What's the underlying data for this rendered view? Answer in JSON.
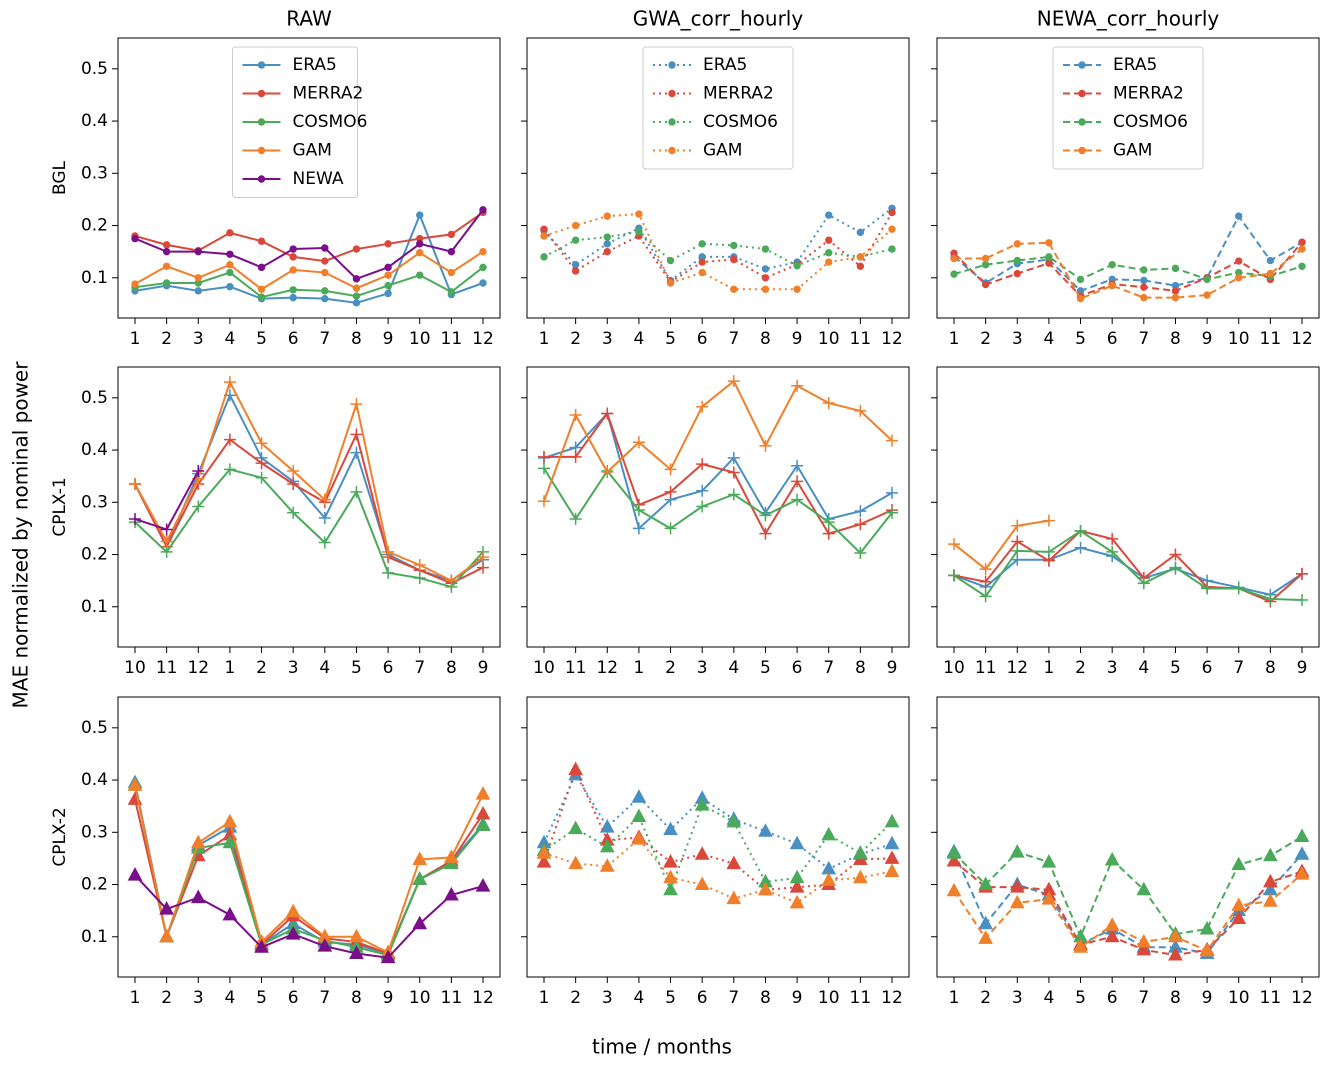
{
  "ylabel": "MAE normalized by nominal power",
  "xlabel": "time / months",
  "chart_data": [
    {
      "type": "line",
      "title": "RAW",
      "ylabel": "BGL",
      "linestyle": "solid",
      "marker": "o",
      "legend": "upper center",
      "categories": [
        "1",
        "2",
        "3",
        "4",
        "5",
        "6",
        "7",
        "8",
        "9",
        "10",
        "11",
        "12"
      ],
      "ylim": [
        0.023,
        0.559
      ],
      "yticks": [
        0.1,
        0.2,
        0.3,
        0.4,
        0.5
      ],
      "series": [
        {
          "name": "ERA5",
          "color": "#4a8fc2",
          "values": [
            0.075,
            0.085,
            0.075,
            0.083,
            0.06,
            0.062,
            0.06,
            0.052,
            0.07,
            0.22,
            0.068,
            0.09
          ]
        },
        {
          "name": "MERRA2",
          "color": "#d9483b",
          "values": [
            0.18,
            0.163,
            0.152,
            0.186,
            0.17,
            0.14,
            0.132,
            0.155,
            0.165,
            0.175,
            0.183,
            0.225
          ]
        },
        {
          "name": "COSMO6",
          "color": "#4aaa5a",
          "values": [
            0.082,
            0.09,
            0.09,
            0.11,
            0.063,
            0.077,
            0.075,
            0.065,
            0.085,
            0.105,
            0.073,
            0.12
          ]
        },
        {
          "name": "GAM",
          "color": "#f07f2a",
          "values": [
            0.088,
            0.122,
            0.1,
            0.125,
            0.078,
            0.115,
            0.11,
            0.08,
            0.105,
            0.148,
            0.11,
            0.15
          ]
        },
        {
          "name": "NEWA",
          "color": "#7a0f8a",
          "values": [
            0.175,
            0.15,
            0.15,
            0.145,
            0.12,
            0.155,
            0.157,
            0.098,
            0.12,
            0.165,
            0.15,
            0.23
          ]
        }
      ]
    },
    {
      "type": "line",
      "title": "GWA_corr_hourly",
      "linestyle": "dotted",
      "marker": "o",
      "legend": "upper center",
      "categories": [
        "1",
        "2",
        "3",
        "4",
        "5",
        "6",
        "7",
        "8",
        "9",
        "10",
        "11",
        "12"
      ],
      "ylim": [
        0.023,
        0.559
      ],
      "yticks": [
        0.1,
        0.2,
        0.3,
        0.4,
        0.5
      ],
      "series": [
        {
          "name": "ERA5",
          "color": "#4a8fc2",
          "values": [
            0.19,
            0.125,
            0.165,
            0.195,
            0.095,
            0.14,
            0.14,
            0.117,
            0.13,
            0.22,
            0.187,
            0.233
          ]
        },
        {
          "name": "MERRA2",
          "color": "#d9483b",
          "values": [
            0.193,
            0.113,
            0.15,
            0.18,
            0.092,
            0.13,
            0.135,
            0.1,
            0.125,
            0.172,
            0.122,
            0.225
          ]
        },
        {
          "name": "COSMO6",
          "color": "#4aaa5a",
          "values": [
            0.14,
            0.172,
            0.178,
            0.188,
            0.133,
            0.165,
            0.162,
            0.155,
            0.123,
            0.148,
            0.14,
            0.155
          ]
        },
        {
          "name": "GAM",
          "color": "#f07f2a",
          "values": [
            0.18,
            0.2,
            0.218,
            0.222,
            0.09,
            0.11,
            0.078,
            0.078,
            0.078,
            0.13,
            0.14,
            0.193
          ]
        }
      ]
    },
    {
      "type": "line",
      "title": "NEWA_corr_hourly",
      "linestyle": "dashed",
      "marker": "o",
      "legend": "upper center",
      "categories": [
        "1",
        "2",
        "3",
        "4",
        "5",
        "6",
        "7",
        "8",
        "9",
        "10",
        "11",
        "12"
      ],
      "ylim": [
        0.023,
        0.559
      ],
      "yticks": [
        0.1,
        0.2,
        0.3,
        0.4,
        0.5
      ],
      "series": [
        {
          "name": "ERA5",
          "color": "#4a8fc2",
          "values": [
            0.14,
            0.09,
            0.127,
            0.135,
            0.075,
            0.097,
            0.095,
            0.085,
            0.1,
            0.218,
            0.133,
            0.168
          ]
        },
        {
          "name": "MERRA2",
          "color": "#d9483b",
          "values": [
            0.147,
            0.087,
            0.108,
            0.128,
            0.065,
            0.088,
            0.082,
            0.075,
            0.1,
            0.132,
            0.097,
            0.168
          ]
        },
        {
          "name": "COSMO6",
          "color": "#4aaa5a",
          "values": [
            0.107,
            0.125,
            0.133,
            0.14,
            0.097,
            0.125,
            0.115,
            0.118,
            0.097,
            0.11,
            0.103,
            0.122
          ]
        },
        {
          "name": "GAM",
          "color": "#f07f2a",
          "values": [
            0.137,
            0.137,
            0.165,
            0.167,
            0.06,
            0.085,
            0.062,
            0.062,
            0.067,
            0.1,
            0.108,
            0.155
          ]
        }
      ]
    },
    {
      "type": "line",
      "ylabel": "CPLX-1",
      "linestyle": "solid",
      "marker": "+",
      "categories": [
        "10",
        "11",
        "12",
        "1",
        "2",
        "3",
        "4",
        "5",
        "6",
        "7",
        "8",
        "9"
      ],
      "ylim": [
        0.023,
        0.559
      ],
      "yticks": [
        0.1,
        0.2,
        0.3,
        0.4,
        0.5
      ],
      "series": [
        {
          "color": "#4a8fc2",
          "values": [
            0.335,
            0.215,
            0.355,
            0.505,
            0.385,
            0.34,
            0.27,
            0.395,
            0.2,
            0.17,
            0.15,
            0.19
          ]
        },
        {
          "color": "#d9483b",
          "values": [
            0.335,
            0.215,
            0.335,
            0.42,
            0.375,
            0.335,
            0.3,
            0.43,
            0.195,
            0.17,
            0.145,
            0.175
          ]
        },
        {
          "color": "#4aaa5a",
          "values": [
            0.262,
            0.205,
            0.292,
            0.363,
            0.347,
            0.28,
            0.223,
            0.32,
            0.165,
            0.155,
            0.138,
            0.205
          ]
        },
        {
          "color": "#f07f2a",
          "values": [
            0.335,
            0.225,
            0.345,
            0.53,
            0.413,
            0.36,
            0.305,
            0.488,
            0.205,
            0.18,
            0.15,
            0.195
          ]
        },
        {
          "color": "#7a0f8a",
          "values": [
            0.268,
            0.248,
            0.36,
            null,
            null,
            null,
            null,
            null,
            null,
            null,
            null,
            null
          ]
        }
      ]
    },
    {
      "type": "line",
      "linestyle": "solid",
      "marker": "+",
      "categories": [
        "10",
        "11",
        "12",
        "1",
        "2",
        "3",
        "4",
        "5",
        "6",
        "7",
        "8",
        "9"
      ],
      "ylim": [
        0.023,
        0.559
      ],
      "yticks": [
        0.1,
        0.2,
        0.3,
        0.4,
        0.5
      ],
      "series": [
        {
          "color": "#4a8fc2",
          "values": [
            0.385,
            0.405,
            0.47,
            0.25,
            0.305,
            0.322,
            0.385,
            0.28,
            0.37,
            0.268,
            0.283,
            0.318
          ]
        },
        {
          "color": "#d9483b",
          "values": [
            0.387,
            0.387,
            0.47,
            0.295,
            0.32,
            0.373,
            0.357,
            0.24,
            0.34,
            0.24,
            0.258,
            0.285
          ]
        },
        {
          "color": "#4aaa5a",
          "values": [
            0.365,
            0.268,
            0.36,
            0.285,
            0.25,
            0.292,
            0.315,
            0.275,
            0.305,
            0.262,
            0.203,
            0.28
          ]
        },
        {
          "color": "#f07f2a",
          "values": [
            0.302,
            0.467,
            0.358,
            0.415,
            0.363,
            0.483,
            0.532,
            0.408,
            0.523,
            0.49,
            0.475,
            0.418
          ]
        }
      ]
    },
    {
      "type": "line",
      "linestyle": "solid",
      "marker": "+",
      "categories": [
        "10",
        "11",
        "12",
        "1",
        "2",
        "3",
        "4",
        "5",
        "6",
        "7",
        "8",
        "9"
      ],
      "ylim": [
        0.023,
        0.559
      ],
      "yticks": [
        0.1,
        0.2,
        0.3,
        0.4,
        0.5
      ],
      "series": [
        {
          "color": "#4a8fc2",
          "values": [
            0.16,
            0.138,
            0.19,
            0.19,
            0.213,
            0.197,
            0.155,
            0.173,
            0.15,
            0.137,
            0.123,
            0.163
          ]
        },
        {
          "color": "#d9483b",
          "values": [
            0.16,
            0.148,
            0.225,
            0.188,
            0.245,
            0.23,
            0.155,
            0.2,
            0.138,
            0.135,
            0.11,
            0.163
          ]
        },
        {
          "color": "#4aaa5a",
          "values": [
            0.16,
            0.12,
            0.207,
            0.205,
            0.245,
            0.205,
            0.145,
            0.175,
            0.135,
            0.135,
            0.115,
            0.113
          ]
        },
        {
          "color": "#f07f2a",
          "values": [
            0.22,
            0.172,
            0.255,
            0.265,
            null,
            null,
            null,
            null,
            null,
            null,
            null,
            null
          ]
        }
      ]
    },
    {
      "type": "line",
      "ylabel": "CPLX-2",
      "linestyle": "solid",
      "marker": "^",
      "categories": [
        "1",
        "2",
        "3",
        "4",
        "5",
        "6",
        "7",
        "8",
        "9",
        "10",
        "11",
        "12"
      ],
      "ylim": [
        0.023,
        0.559
      ],
      "yticks": [
        0.1,
        0.2,
        0.3,
        0.4,
        0.5
      ],
      "series": [
        {
          "color": "#4a8fc2",
          "values": [
            0.395,
            0.1,
            0.275,
            0.31,
            0.085,
            0.125,
            0.09,
            0.085,
            0.068,
            0.21,
            0.245,
            0.315
          ]
        },
        {
          "color": "#d9483b",
          "values": [
            0.363,
            0.1,
            0.255,
            0.295,
            0.085,
            0.14,
            0.097,
            0.09,
            0.068,
            0.21,
            0.245,
            0.335
          ]
        },
        {
          "color": "#4aaa5a",
          "values": [
            0.39,
            0.1,
            0.27,
            0.28,
            0.085,
            0.115,
            0.093,
            0.08,
            0.065,
            0.21,
            0.24,
            0.313
          ]
        },
        {
          "color": "#f07f2a",
          "values": [
            0.39,
            0.1,
            0.28,
            0.32,
            0.09,
            0.148,
            0.1,
            0.1,
            0.07,
            0.248,
            0.252,
            0.373
          ]
        },
        {
          "color": "#7a0f8a",
          "values": [
            0.218,
            0.153,
            0.175,
            0.142,
            0.08,
            0.105,
            0.082,
            0.068,
            0.06,
            0.125,
            0.18,
            0.197
          ]
        }
      ]
    },
    {
      "type": "line",
      "linestyle": "dotted",
      "marker": "^",
      "categories": [
        "1",
        "2",
        "3",
        "4",
        "5",
        "6",
        "7",
        "8",
        "9",
        "10",
        "11",
        "12"
      ],
      "ylim": [
        0.023,
        0.559
      ],
      "yticks": [
        0.1,
        0.2,
        0.3,
        0.4,
        0.5
      ],
      "series": [
        {
          "color": "#4a8fc2",
          "values": [
            0.28,
            0.41,
            0.31,
            0.367,
            0.305,
            0.365,
            0.325,
            0.302,
            0.278,
            0.23,
            0.258,
            0.278
          ]
        },
        {
          "color": "#d9483b",
          "values": [
            0.243,
            0.42,
            0.285,
            0.29,
            0.243,
            0.258,
            0.24,
            0.19,
            0.195,
            0.2,
            0.248,
            0.25
          ]
        },
        {
          "color": "#4aaa5a",
          "values": [
            0.265,
            0.307,
            0.272,
            0.33,
            0.19,
            0.352,
            0.32,
            0.205,
            0.213,
            0.295,
            0.26,
            0.32
          ]
        },
        {
          "color": "#f07f2a",
          "values": [
            0.26,
            0.24,
            0.235,
            0.287,
            0.213,
            0.2,
            0.173,
            0.19,
            0.165,
            0.208,
            0.213,
            0.225
          ]
        }
      ]
    },
    {
      "type": "line",
      "linestyle": "dashed",
      "marker": "^",
      "categories": [
        "1",
        "2",
        "3",
        "4",
        "5",
        "6",
        "7",
        "8",
        "9",
        "10",
        "11",
        "12"
      ],
      "ylim": [
        0.023,
        0.559
      ],
      "yticks": [
        0.1,
        0.2,
        0.3,
        0.4,
        0.5
      ],
      "series": [
        {
          "color": "#4a8fc2",
          "values": [
            0.263,
            0.125,
            0.2,
            0.18,
            0.085,
            0.115,
            0.08,
            0.08,
            0.068,
            0.15,
            0.19,
            0.258
          ]
        },
        {
          "color": "#d9483b",
          "values": [
            0.245,
            0.195,
            0.195,
            0.19,
            0.085,
            0.1,
            0.075,
            0.065,
            0.075,
            0.135,
            0.205,
            0.225
          ]
        },
        {
          "color": "#4aaa5a",
          "values": [
            0.26,
            0.2,
            0.262,
            0.243,
            0.1,
            0.247,
            0.19,
            0.105,
            0.115,
            0.238,
            0.255,
            0.292
          ]
        },
        {
          "color": "#f07f2a",
          "values": [
            0.188,
            0.097,
            0.165,
            0.172,
            0.08,
            0.122,
            0.09,
            0.1,
            0.073,
            0.16,
            0.168,
            0.22
          ]
        }
      ]
    }
  ]
}
